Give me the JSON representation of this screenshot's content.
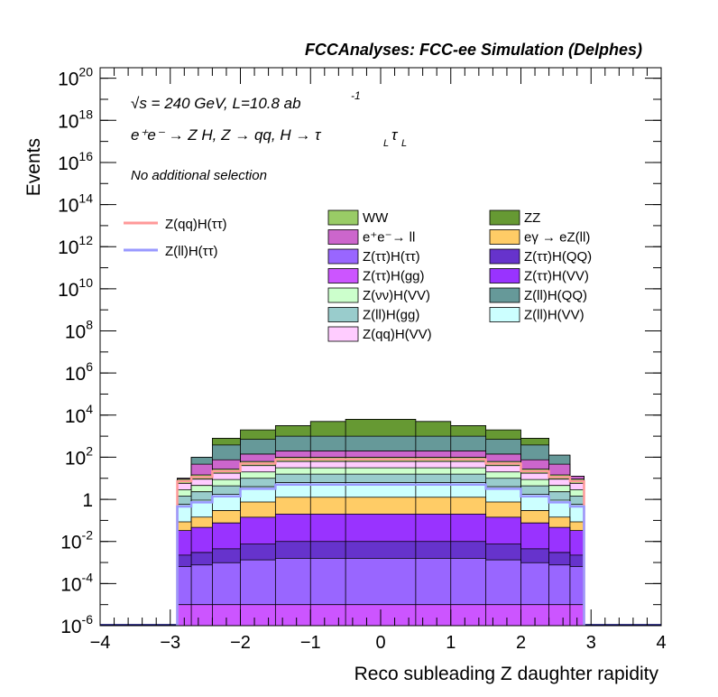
{
  "header": "FCCAnalyses: FCC-ee Simulation (Delphes)",
  "annotations": {
    "sqrt_s": "√s = 240 GeV, L=10.8 ab",
    "lumi_exp": "-1",
    "process": "e⁺e⁻ → Z H, Z → qq, H → τ",
    "tau_sub1": "L",
    "tau_sym": "τ",
    "tau_sub2": "L",
    "selection": "No additional selection"
  },
  "chart_data": {
    "type": "histogram-stacked",
    "xlabel": "Reco subleading Z daughter rapidity",
    "ylabel": "Events",
    "xlim": [
      -4,
      4
    ],
    "ylim_log10": [
      -6,
      20.5
    ],
    "log_y": true,
    "x_ticks": [
      "−4",
      "−3",
      "−2",
      "−1",
      "0",
      "1",
      "2",
      "3",
      "4"
    ],
    "y_ticks": [
      {
        "base": "10",
        "exp": "20",
        "v": 20
      },
      {
        "base": "10",
        "exp": "18",
        "v": 18
      },
      {
        "base": "10",
        "exp": "16",
        "v": 16
      },
      {
        "base": "10",
        "exp": "14",
        "v": 14
      },
      {
        "base": "10",
        "exp": "12",
        "v": 12
      },
      {
        "base": "10",
        "exp": "10",
        "v": 10
      },
      {
        "base": "10",
        "exp": "8",
        "v": 8
      },
      {
        "base": "10",
        "exp": "6",
        "v": 6
      },
      {
        "base": "10",
        "exp": "4",
        "v": 4
      },
      {
        "base": "10",
        "exp": "2",
        "v": 2
      },
      {
        "base": "1",
        "exp": "",
        "v": 0
      },
      {
        "base": "10",
        "exp": "-2",
        "v": -2
      },
      {
        "base": "10",
        "exp": "-4",
        "v": -4
      },
      {
        "base": "10",
        "exp": "-6",
        "v": -6
      }
    ],
    "stack_bins": [
      {
        "x0": -2.9,
        "x1": -2.7,
        "top": 1.0
      },
      {
        "x0": -2.7,
        "x1": -2.4,
        "top": 2.0
      },
      {
        "x0": -2.4,
        "x1": -2.0,
        "top": 2.9
      },
      {
        "x0": -2.0,
        "x1": -1.5,
        "top": 3.3
      },
      {
        "x0": -1.5,
        "x1": -1.0,
        "top": 3.5
      },
      {
        "x0": -1.0,
        "x1": -0.5,
        "top": 3.7
      },
      {
        "x0": -0.5,
        "x1": 0.5,
        "top": 3.8
      },
      {
        "x0": 0.5,
        "x1": 1.0,
        "top": 3.7
      },
      {
        "x0": 1.0,
        "x1": 1.5,
        "top": 3.5
      },
      {
        "x0": 1.5,
        "x1": 2.0,
        "top": 3.3
      },
      {
        "x0": 2.0,
        "x1": 2.4,
        "top": 2.9
      },
      {
        "x0": 2.4,
        "x1": 2.7,
        "top": 2.1
      },
      {
        "x0": 2.7,
        "x1": 2.9,
        "top": 1.1
      }
    ],
    "stack_layers": [
      {
        "name": "Z(ττ)H(gg)",
        "color": "#cc55ff",
        "log_at_center": -5.0,
        "falloff": 0.0
      },
      {
        "name": "Z(ττ)H(ττ)",
        "color": "#9966ff",
        "log_at_center": -2.8,
        "falloff": 0.3
      },
      {
        "name": "Z(ττ)H(QQ)",
        "color": "#6633cc",
        "log_at_center": -2.0,
        "falloff": 0.5
      },
      {
        "name": "Z(ττ)H(VV)",
        "color": "#9933ff",
        "log_at_center": -0.7,
        "falloff": 0.6
      },
      {
        "name": "eγ → eZ(ll)",
        "color": "#ffcc66",
        "log_at_center": 0.1,
        "falloff": 0.9
      },
      {
        "name": "Z(ll)H(VV)",
        "color": "#ccffff",
        "log_at_center": 0.8,
        "falloff": 0.8
      },
      {
        "name": "Z(ll)H(gg)",
        "color": "#99cccc",
        "log_at_center": 1.2,
        "falloff": 0.8
      },
      {
        "name": "Z(νν)H(VV)",
        "color": "#ccffcc",
        "log_at_center": 1.5,
        "falloff": 0.8
      },
      {
        "name": "Z(qq)H(VV)",
        "color": "#ffccff",
        "log_at_center": 1.8,
        "falloff": 0.8
      },
      {
        "name": "WW",
        "color": "#99cc66",
        "log_at_center": 2.0,
        "falloff": 0.8
      },
      {
        "name": "e⁺e⁻→ ll",
        "color": "#cc66cc",
        "log_at_center": 2.3,
        "falloff": 0.6
      },
      {
        "name": "Z(ll)H(QQ)",
        "color": "#669999",
        "log_at_center": 3.0,
        "falloff": 0.6
      },
      {
        "name": "ZZ",
        "color": "#669933",
        "log_at_center": 3.8,
        "falloff": 0.0
      }
    ],
    "legend_stack": [
      {
        "name": "WW",
        "color": "#99cc66"
      },
      {
        "name": "ZZ",
        "color": "#669933"
      },
      {
        "name": "e⁺e⁻→ ll",
        "color": "#cc66cc"
      },
      {
        "name": "eγ → eZ(ll)",
        "color": "#ffcc66"
      },
      {
        "name": "Z(ττ)H(ττ)",
        "color": "#9966ff"
      },
      {
        "name": "Z(ττ)H(QQ)",
        "color": "#6633cc"
      },
      {
        "name": "Z(ττ)H(gg)",
        "color": "#cc55ff"
      },
      {
        "name": "Z(ττ)H(VV)",
        "color": "#9933ff"
      },
      {
        "name": "Z(νν)H(VV)",
        "color": "#ccffcc"
      },
      {
        "name": "Z(ll)H(QQ)",
        "color": "#669999"
      },
      {
        "name": "Z(ll)H(gg)",
        "color": "#99cccc"
      },
      {
        "name": "Z(ll)H(VV)",
        "color": "#ccffff"
      },
      {
        "name": "Z(qq)H(VV)",
        "color": "#ffccff"
      }
    ],
    "signals": [
      {
        "name": "Z(qq)H(ττ)",
        "color": "#ff9999",
        "log_at_center": 1.9,
        "falloff": 0.8
      },
      {
        "name": "Z(ll)H(ττ)",
        "color": "#9999ff",
        "log_at_center": 0.7,
        "falloff": 0.8
      }
    ]
  }
}
